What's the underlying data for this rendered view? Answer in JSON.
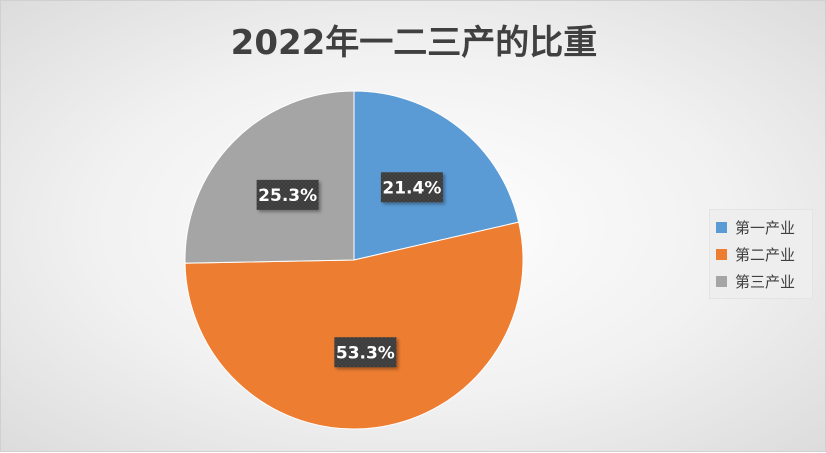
{
  "chart_data": {
    "type": "pie",
    "title": "2022年一二三产的比重",
    "categories": [
      "第一产业",
      "第二产业",
      "第三产业"
    ],
    "values": [
      21.4,
      53.3,
      25.3
    ],
    "labels": [
      "21.4%",
      "53.3%",
      "25.3%"
    ],
    "colors": [
      "#5b9bd5",
      "#ed7d31",
      "#a5a5a5"
    ],
    "legend_position": "right",
    "start_angle_deg": 0,
    "direction": "clockwise"
  }
}
